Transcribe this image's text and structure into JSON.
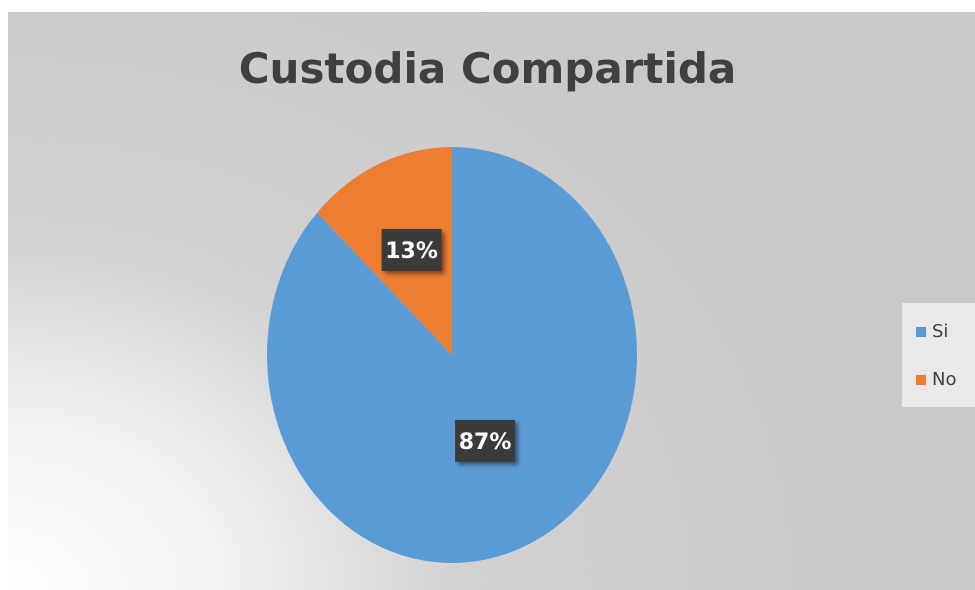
{
  "chart_data": {
    "type": "pie",
    "title": "Custodia Compartida",
    "categories": [
      "Si",
      "No"
    ],
    "values": [
      87,
      13
    ],
    "labels": [
      "87%",
      "13%"
    ],
    "colors": [
      "#5B9BD5",
      "#ED7D31"
    ],
    "legend_position": "right"
  }
}
